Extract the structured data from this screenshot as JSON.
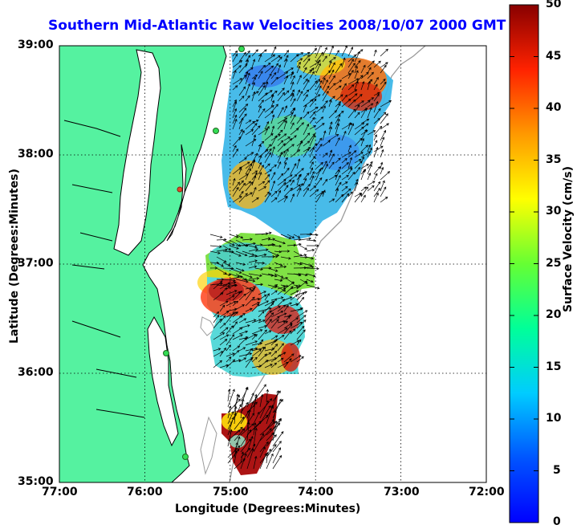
{
  "title": "Southern Mid-Atlantic Raw Velocities 2008/10/07 2000 GMT",
  "xlabel": "Longitude (Degrees:Minutes)",
  "ylabel": "Latitude (Degrees:Minutes)",
  "colorbar": {
    "label": "Surface Velocity (cm/s)",
    "ticks": [
      "50",
      "45",
      "40",
      "35",
      "30",
      "25",
      "20",
      "15",
      "10",
      "5",
      "0"
    ],
    "min": 0,
    "max": 50
  },
  "x_ticks": [
    "77:00",
    "76:00",
    "75:00",
    "74:00",
    "73:00",
    "72:00"
  ],
  "y_ticks": [
    "39:00",
    "38:00",
    "37:00",
    "36:00",
    "35:00"
  ],
  "colors": {
    "land": "#55f2a0",
    "ocean": "#ffffff",
    "title": "#0000ff",
    "bathymetry": "#9a9a9a",
    "station": "#33dd55",
    "station_alt": "#e34a2a"
  }
}
